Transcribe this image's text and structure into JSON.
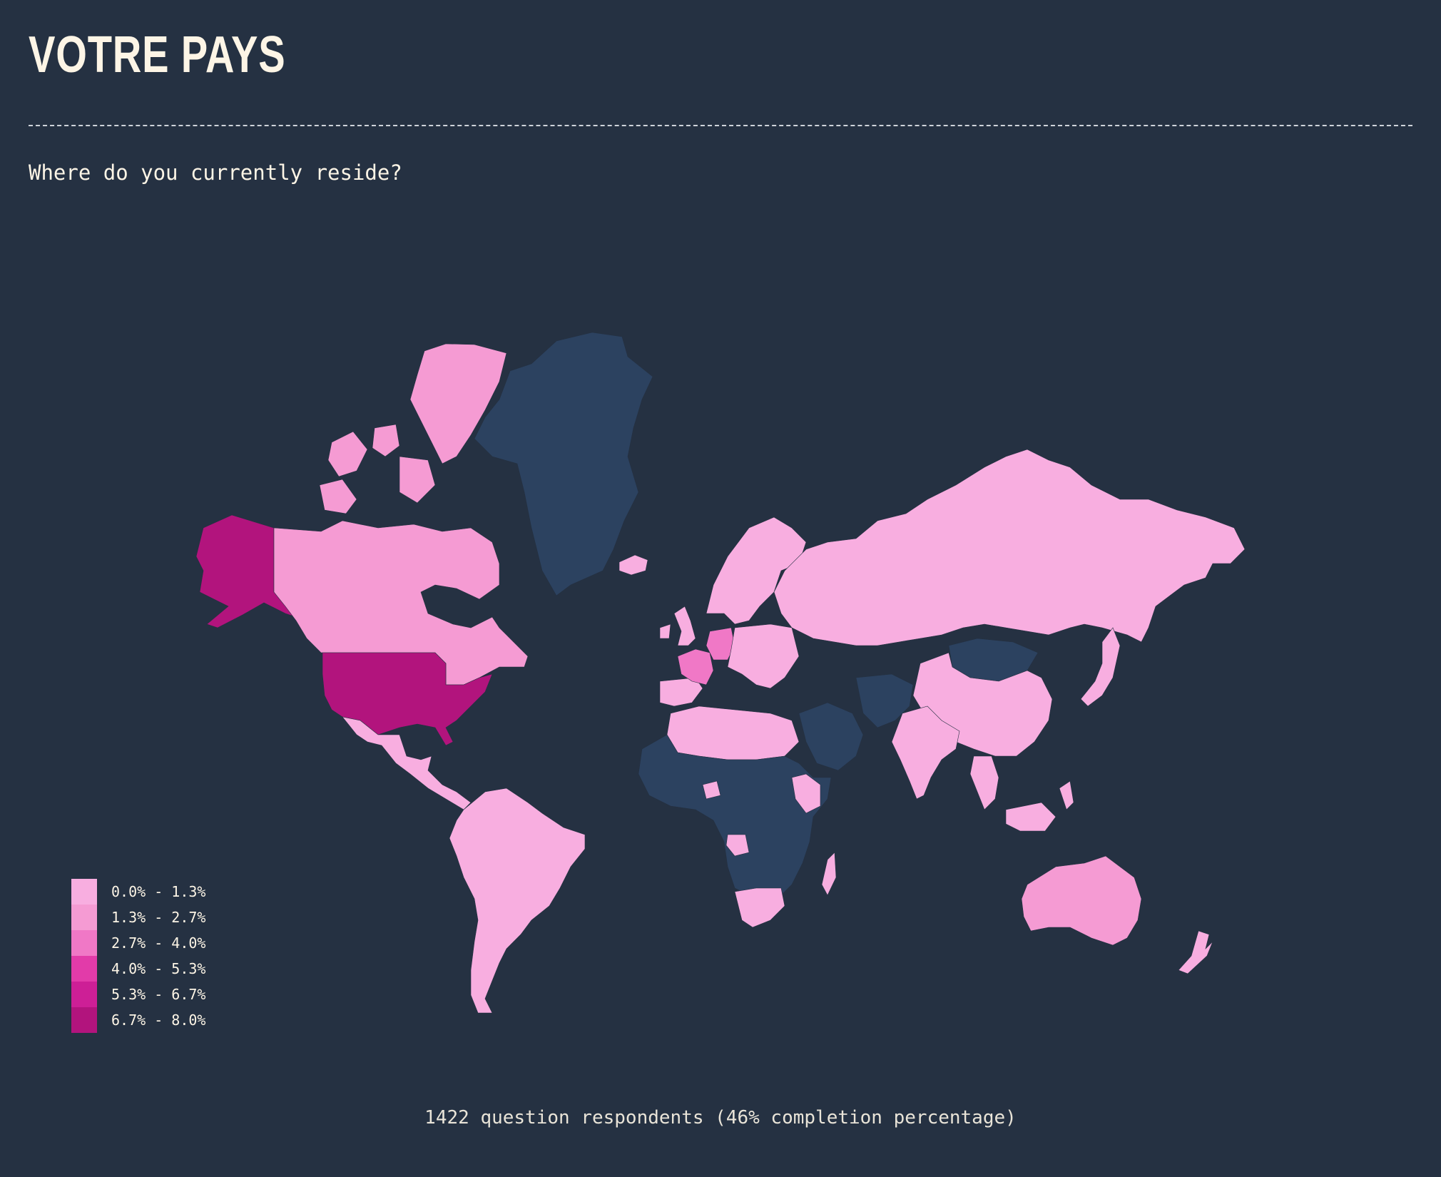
{
  "page": {
    "title": "VOTRE PAYS",
    "question": "Where do you currently reside?",
    "footer": "1422 question respondents (46% completion percentage)"
  },
  "colors": {
    "background": "#253142",
    "no_data": "#2c4260",
    "bin_1": "#f8aee0",
    "bin_2": "#f59bd3",
    "bin_3": "#f078c6",
    "bin_4": "#e23ba9",
    "bin_5": "#cd1f96",
    "bin_6": "#b2147d"
  },
  "legend": [
    {
      "label": "0.0% - 1.3%",
      "color": "#f8aee0"
    },
    {
      "label": "1.3% - 2.7%",
      "color": "#f59bd3"
    },
    {
      "label": "2.7% - 4.0%",
      "color": "#f078c6"
    },
    {
      "label": "4.0% - 5.3%",
      "color": "#e23ba9"
    },
    {
      "label": "5.3% - 6.7%",
      "color": "#cd1f96"
    },
    {
      "label": "6.7% - 8.0%",
      "color": "#b2147d"
    }
  ],
  "regions": [
    {
      "name": "usa",
      "bin": 6
    },
    {
      "name": "alaska",
      "bin": 6
    },
    {
      "name": "canada",
      "bin": 2
    },
    {
      "name": "canada-arctic",
      "bin": 2
    },
    {
      "name": "greenland",
      "bin": 0
    },
    {
      "name": "iceland",
      "bin": 1
    },
    {
      "name": "mexico-central-america",
      "bin": 1
    },
    {
      "name": "south-america",
      "bin": 1
    },
    {
      "name": "france",
      "bin": 3
    },
    {
      "name": "germany",
      "bin": 3
    },
    {
      "name": "uk",
      "bin": 1
    },
    {
      "name": "iberia",
      "bin": 1
    },
    {
      "name": "scandinavia",
      "bin": 1
    },
    {
      "name": "russia",
      "bin": 1
    },
    {
      "name": "mongolia",
      "bin": 0
    },
    {
      "name": "china",
      "bin": 1
    },
    {
      "name": "india",
      "bin": 1
    },
    {
      "name": "north-africa",
      "bin": 1
    },
    {
      "name": "central-africa",
      "bin": 0
    },
    {
      "name": "south-africa",
      "bin": 1
    },
    {
      "name": "madagascar",
      "bin": 1
    },
    {
      "name": "arabia",
      "bin": 0
    },
    {
      "name": "pakistan-afghanistan",
      "bin": 0
    },
    {
      "name": "southeast-asia",
      "bin": 1
    },
    {
      "name": "japan",
      "bin": 1
    },
    {
      "name": "australia",
      "bin": 2
    },
    {
      "name": "new-zealand",
      "bin": 1
    }
  ]
}
